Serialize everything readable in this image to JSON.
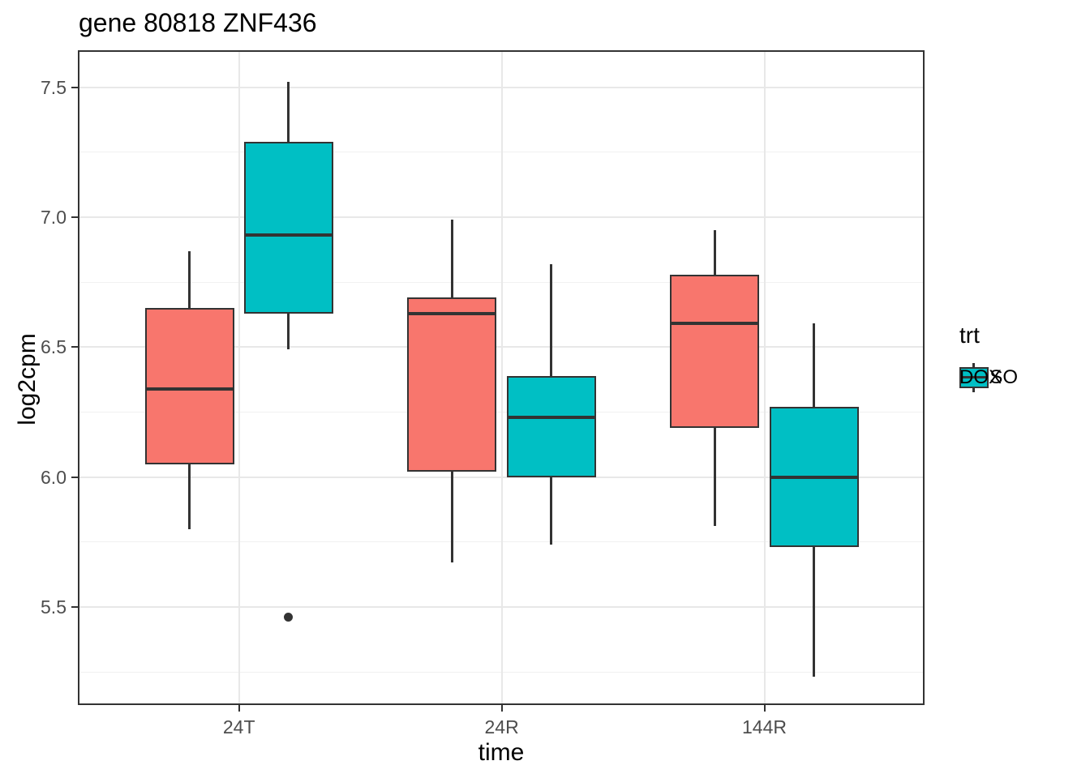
{
  "chart_data": {
    "type": "boxplot",
    "title": "gene 80818 ZNF436",
    "xlabel": "time",
    "ylabel": "log2cpm",
    "categories": [
      "24T",
      "24R",
      "144R"
    ],
    "y_ticks": [
      {
        "label": "7.5",
        "value": 7.5
      },
      {
        "label": "7.0",
        "value": 7.0
      },
      {
        "label": "6.5",
        "value": 6.5
      },
      {
        "label": "6.0",
        "value": 6.0
      },
      {
        "label": "5.5",
        "value": 5.5
      }
    ],
    "y_minor_ticks": [
      7.25,
      6.75,
      6.25,
      5.75,
      5.25
    ],
    "ylim": [
      5.12,
      7.64
    ],
    "grid": "major-and-minor-horizontal, major-vertical-at-categories",
    "legend": {
      "title": "trt",
      "position": "right",
      "entries": [
        {
          "label": "DMSO",
          "color": "#F8766D"
        },
        {
          "label": "DOX",
          "color": "#00BFC4"
        }
      ]
    },
    "series": [
      {
        "name": "DMSO",
        "color": "#F8766D",
        "boxes": [
          {
            "category": "24T",
            "whisker_low": 5.8,
            "q1": 6.05,
            "median": 6.34,
            "q3": 6.65,
            "whisker_high": 6.87,
            "outliers": []
          },
          {
            "category": "24R",
            "whisker_low": 5.67,
            "q1": 6.02,
            "median": 6.63,
            "q3": 6.69,
            "whisker_high": 6.99,
            "outliers": []
          },
          {
            "category": "144R",
            "whisker_low": 5.81,
            "q1": 6.19,
            "median": 6.59,
            "q3": 6.78,
            "whisker_high": 6.95,
            "outliers": []
          }
        ]
      },
      {
        "name": "DOX",
        "color": "#00BFC4",
        "boxes": [
          {
            "category": "24T",
            "whisker_low": 6.49,
            "q1": 6.63,
            "median": 6.93,
            "q3": 7.29,
            "whisker_high": 7.52,
            "outliers": [
              5.46
            ]
          },
          {
            "category": "24R",
            "whisker_low": 5.74,
            "q1": 6.0,
            "median": 6.23,
            "q3": 6.39,
            "whisker_high": 6.82,
            "outliers": []
          },
          {
            "category": "144R",
            "whisker_low": 5.23,
            "q1": 5.73,
            "median": 6.0,
            "q3": 6.27,
            "whisker_high": 6.59,
            "outliers": []
          }
        ]
      }
    ],
    "colors": {
      "box_outline": "#333333",
      "grid_major": "#e8e8e8",
      "grid_minor": "#f1f1f1",
      "tick_label": "#4d4d4d",
      "panel_border": "#333333"
    }
  }
}
